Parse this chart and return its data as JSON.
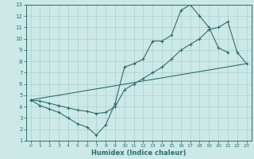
{
  "xlabel": "Humidex (Indice chaleur)",
  "bg_color": "#cce9e8",
  "grid_color": "#aad0cc",
  "line_color": "#2d6e6a",
  "xlim": [
    -0.5,
    23.5
  ],
  "ylim": [
    1,
    13
  ],
  "xticks": [
    0,
    1,
    2,
    3,
    4,
    5,
    6,
    7,
    8,
    9,
    10,
    11,
    12,
    13,
    14,
    15,
    16,
    17,
    18,
    19,
    20,
    21,
    22,
    23
  ],
  "yticks": [
    1,
    2,
    3,
    4,
    5,
    6,
    7,
    8,
    9,
    10,
    11,
    12,
    13
  ],
  "curve_up_x": [
    0,
    1,
    2,
    3,
    4,
    5,
    6,
    7,
    8,
    9,
    10,
    11,
    12,
    13,
    14,
    15,
    16,
    17,
    18,
    19,
    20,
    21
  ],
  "curve_up_y": [
    4.6,
    4.1,
    3.8,
    3.5,
    3.0,
    2.5,
    2.2,
    1.5,
    2.4,
    4.3,
    7.5,
    7.8,
    8.2,
    9.8,
    9.8,
    10.3,
    12.5,
    13.0,
    12.0,
    11.0,
    9.2,
    8.8
  ],
  "curve_low_x": [
    0,
    1,
    2,
    3,
    4,
    5,
    6,
    7,
    8,
    9,
    10,
    11,
    12,
    13,
    14,
    15,
    16,
    17,
    18,
    19,
    20,
    21,
    22,
    23
  ],
  "curve_low_y": [
    4.6,
    4.5,
    4.3,
    4.1,
    3.9,
    3.7,
    3.6,
    3.4,
    3.5,
    4.0,
    5.5,
    6.0,
    6.5,
    7.0,
    7.5,
    8.2,
    9.0,
    9.5,
    10.0,
    10.8,
    11.0,
    11.5,
    8.8,
    7.8
  ],
  "line_x": [
    0,
    23
  ],
  "line_y": [
    4.6,
    7.8
  ],
  "xlabel_fontsize": 6,
  "tick_fontsize": 5
}
